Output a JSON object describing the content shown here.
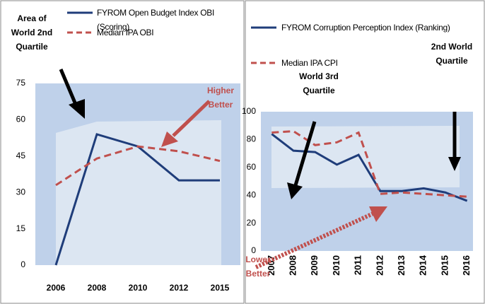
{
  "chart_data": [
    {
      "type": "line",
      "categories": [
        "2006",
        "2008",
        "2010",
        "2012",
        "2015"
      ],
      "series": [
        {
          "name": "FYROM Open  Budget Index  OBI (Scoring)",
          "color": "#1f3d7a",
          "dash": false,
          "values": [
            0,
            54,
            49,
            35,
            35
          ]
        },
        {
          "name": "Median IPA OBI",
          "color": "#c0504d",
          "dash": true,
          "values": [
            33,
            44,
            49,
            47,
            43
          ]
        }
      ],
      "ylim": [
        0,
        75
      ],
      "yticks": [
        0,
        15,
        30,
        45,
        60,
        75
      ],
      "annotations": [
        "Area of World 2nd Quartile",
        "Higher Better"
      ]
    },
    {
      "type": "line",
      "categories": [
        "2007",
        "2008",
        "2009",
        "2010",
        "2011",
        "2012",
        "2013",
        "2014",
        "2015",
        "2016"
      ],
      "series": [
        {
          "name": "FYROM Corruption Perception Index (Ranking)",
          "color": "#1f3d7a",
          "dash": false,
          "values": [
            84,
            72,
            71,
            62,
            69,
            43,
            43,
            45,
            42,
            36
          ]
        },
        {
          "name": "Median IPA CPI",
          "color": "#c0504d",
          "dash": true,
          "values": [
            85,
            86,
            76,
            78,
            85,
            41,
            42,
            41,
            40,
            39
          ]
        }
      ],
      "ylim": [
        0,
        100
      ],
      "yticks": [
        0,
        20,
        40,
        60,
        80,
        100
      ],
      "annotations": [
        "World 3rd Quartile",
        "2nd World Quartile",
        "Lower Better"
      ]
    }
  ]
}
